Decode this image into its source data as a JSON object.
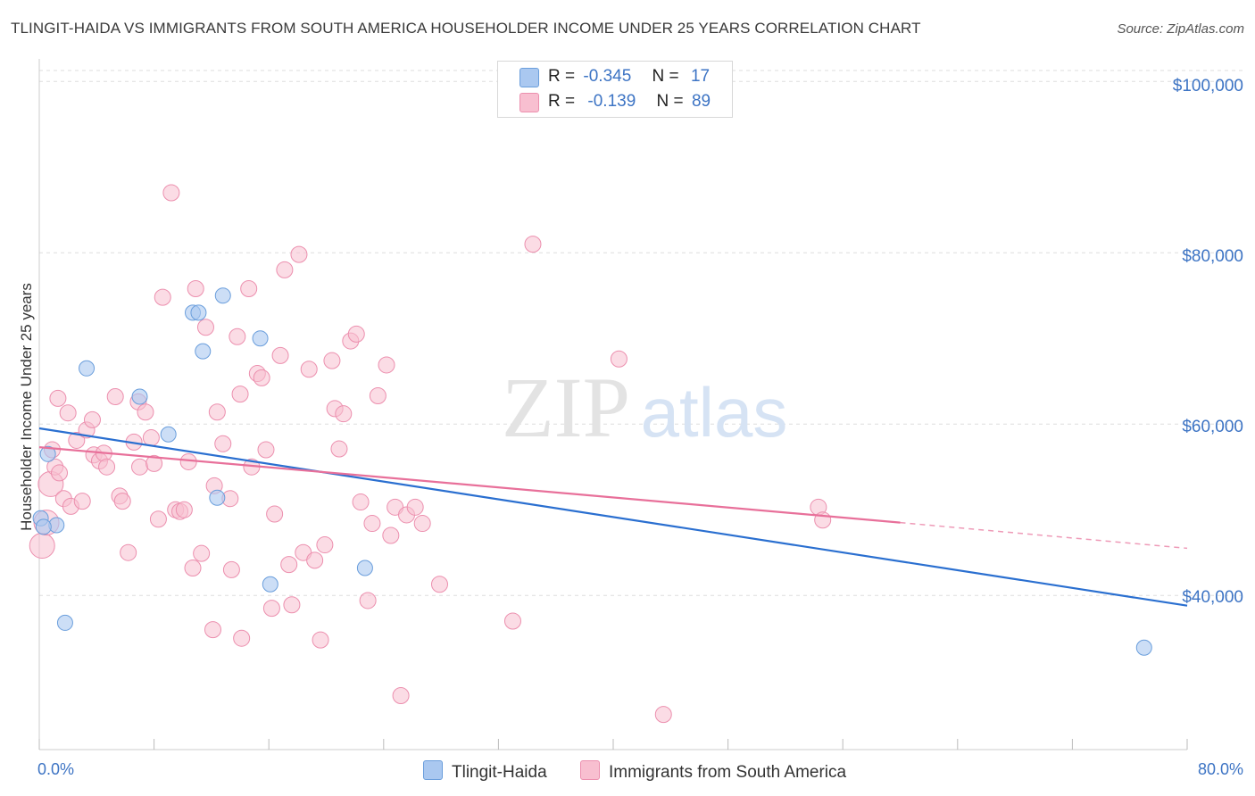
{
  "title": "TLINGIT-HAIDA VS IMMIGRANTS FROM SOUTH AMERICA HOUSEHOLDER INCOME UNDER 25 YEARS CORRELATION CHART",
  "source": "Source: ZipAtlas.com",
  "watermark": {
    "zip": "ZIP",
    "atlas": "atlas"
  },
  "stats": [
    {
      "r_label": "R =",
      "r_value": "-0.345",
      "n_label": "N =",
      "n_value": "17"
    },
    {
      "r_label": "R =",
      "r_value": "-0.139",
      "n_label": "N =",
      "n_value": "89"
    }
  ],
  "colors": {
    "blue_fill": "#aac8f0",
    "blue_stroke": "#6a9edc",
    "blue_line": "#2a6fd0",
    "pink_fill": "#f8bfd0",
    "pink_stroke": "#ec8fae",
    "pink_line": "#e8709a",
    "tick_text": "#3d74c4",
    "grid": "#dddddd"
  },
  "chart_data": {
    "type": "scatter",
    "title": "TLINGIT-HAIDA VS IMMIGRANTS FROM SOUTH AMERICA HOUSEHOLDER INCOME UNDER 25 YEARS CORRELATION CHART",
    "xlabel": "",
    "ylabel": "Householder Income Under 25 years",
    "xlim": [
      0,
      80
    ],
    "ylim": [
      22000,
      102000
    ],
    "x_tick_labels": [
      "0.0%",
      "80.0%"
    ],
    "y_ticks": [
      40000,
      60000,
      80000,
      100000
    ],
    "y_tick_labels": [
      "$40,000",
      "$60,000",
      "$80,000",
      "$100,000"
    ],
    "grid": true,
    "legend_position": "bottom-center",
    "series": [
      {
        "name": "Tlingit-Haida",
        "color": "#aac8f0",
        "trend": {
          "x0": 0,
          "y0": 59500,
          "x1": 80,
          "y1": 38800
        },
        "points": [
          [
            0.1,
            49000
          ],
          [
            0.6,
            56500
          ],
          [
            1.2,
            48200
          ],
          [
            1.8,
            36800
          ],
          [
            3.3,
            66500
          ],
          [
            7.0,
            63200
          ],
          [
            9.0,
            58800
          ],
          [
            10.7,
            73000
          ],
          [
            11.1,
            73000
          ],
          [
            11.4,
            68500
          ],
          [
            12.4,
            51400
          ],
          [
            12.8,
            75000
          ],
          [
            15.4,
            70000
          ],
          [
            16.1,
            41300
          ],
          [
            22.7,
            43200
          ],
          [
            77.0,
            33900
          ],
          [
            0.3,
            48000
          ]
        ]
      },
      {
        "name": "Immigrants from South America",
        "color": "#f8bfd0",
        "trend": {
          "x0": 0,
          "y0": 57300,
          "x1": 60,
          "y1": 48500
        },
        "trend_dashed": {
          "x0": 60,
          "y0": 48500,
          "x1": 80,
          "y1": 45500
        },
        "points": [
          [
            0.2,
            45800
          ],
          [
            0.5,
            48500
          ],
          [
            0.8,
            53000
          ],
          [
            1.1,
            55000
          ],
          [
            1.4,
            54300
          ],
          [
            1.7,
            51300
          ],
          [
            2.0,
            61300
          ],
          [
            2.2,
            50400
          ],
          [
            2.6,
            58100
          ],
          [
            3.0,
            51000
          ],
          [
            3.3,
            59300
          ],
          [
            3.8,
            56400
          ],
          [
            3.7,
            60500
          ],
          [
            4.2,
            55700
          ],
          [
            4.5,
            56600
          ],
          [
            4.7,
            55000
          ],
          [
            5.3,
            63200
          ],
          [
            5.6,
            51600
          ],
          [
            5.8,
            51000
          ],
          [
            6.2,
            45000
          ],
          [
            6.6,
            57900
          ],
          [
            6.9,
            62600
          ],
          [
            7.0,
            55000
          ],
          [
            7.4,
            61400
          ],
          [
            7.8,
            58400
          ],
          [
            8.0,
            55400
          ],
          [
            8.3,
            48900
          ],
          [
            8.6,
            74800
          ],
          [
            9.2,
            87000
          ],
          [
            9.5,
            50000
          ],
          [
            9.8,
            49800
          ],
          [
            10.1,
            50000
          ],
          [
            10.4,
            55600
          ],
          [
            10.7,
            43200
          ],
          [
            10.9,
            75800
          ],
          [
            11.3,
            44900
          ],
          [
            11.6,
            71300
          ],
          [
            12.2,
            52800
          ],
          [
            12.4,
            61400
          ],
          [
            12.8,
            57700
          ],
          [
            13.3,
            51300
          ],
          [
            13.4,
            43000
          ],
          [
            13.8,
            70200
          ],
          [
            14.0,
            63500
          ],
          [
            14.6,
            75800
          ],
          [
            14.8,
            55000
          ],
          [
            15.2,
            65900
          ],
          [
            15.5,
            65400
          ],
          [
            15.8,
            57000
          ],
          [
            16.2,
            38500
          ],
          [
            16.4,
            49500
          ],
          [
            16.8,
            68000
          ],
          [
            17.1,
            78000
          ],
          [
            17.4,
            43600
          ],
          [
            17.6,
            38900
          ],
          [
            18.1,
            79800
          ],
          [
            18.4,
            45000
          ],
          [
            18.8,
            66400
          ],
          [
            19.2,
            44100
          ],
          [
            19.6,
            34800
          ],
          [
            19.9,
            45900
          ],
          [
            20.4,
            67400
          ],
          [
            20.6,
            61800
          ],
          [
            20.9,
            57100
          ],
          [
            21.2,
            61200
          ],
          [
            21.7,
            69700
          ],
          [
            22.1,
            70500
          ],
          [
            22.4,
            50900
          ],
          [
            22.9,
            39400
          ],
          [
            23.2,
            48400
          ],
          [
            23.6,
            63300
          ],
          [
            24.2,
            66900
          ],
          [
            24.5,
            47000
          ],
          [
            24.8,
            50300
          ],
          [
            25.2,
            28300
          ],
          [
            25.6,
            49400
          ],
          [
            26.2,
            50300
          ],
          [
            26.7,
            48400
          ],
          [
            27.9,
            41300
          ],
          [
            33.0,
            37000
          ],
          [
            34.4,
            81000
          ],
          [
            40.4,
            67600
          ],
          [
            43.5,
            26100
          ],
          [
            54.3,
            50300
          ],
          [
            54.6,
            48800
          ],
          [
            14.1,
            35000
          ],
          [
            12.1,
            36000
          ],
          [
            1.3,
            63000
          ],
          [
            0.9,
            57000
          ]
        ]
      }
    ]
  },
  "legend": [
    {
      "label": "Tlingit-Haida"
    },
    {
      "label": "Immigrants from South America"
    }
  ]
}
